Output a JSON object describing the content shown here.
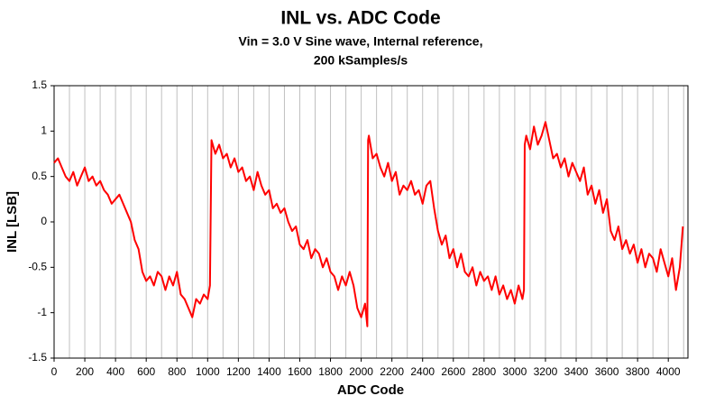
{
  "chart_data": {
    "type": "line",
    "title": "INL vs. ADC Code",
    "subtitle": [
      "Vin = 3.0 V Sine wave, Internal reference,",
      "200 kSamples/s"
    ],
    "xlabel": "ADC Code",
    "ylabel": "INL [LSB]",
    "color": "#ff0000",
    "grid": true,
    "x_grid_step": 100,
    "xlim": [
      0,
      4128
    ],
    "ylim": [
      -1.5,
      1.5
    ],
    "xticks": [
      0,
      200,
      400,
      600,
      800,
      1000,
      1200,
      1400,
      1600,
      1800,
      2000,
      2200,
      2400,
      2600,
      2800,
      3000,
      3200,
      3400,
      3600,
      3800,
      4000
    ],
    "yticks": [
      1.5,
      1,
      0.5,
      0,
      -0.5,
      -1,
      -1.5
    ],
    "x": [
      0,
      25,
      50,
      75,
      100,
      125,
      150,
      175,
      200,
      225,
      250,
      275,
      300,
      325,
      350,
      375,
      400,
      425,
      450,
      475,
      500,
      525,
      550,
      575,
      600,
      625,
      650,
      675,
      700,
      725,
      750,
      775,
      800,
      825,
      850,
      875,
      900,
      925,
      950,
      975,
      1000,
      1015,
      1025,
      1050,
      1075,
      1100,
      1125,
      1150,
      1175,
      1200,
      1225,
      1250,
      1275,
      1300,
      1325,
      1350,
      1375,
      1400,
      1425,
      1450,
      1475,
      1500,
      1525,
      1550,
      1575,
      1600,
      1625,
      1650,
      1675,
      1700,
      1725,
      1750,
      1775,
      1800,
      1825,
      1850,
      1875,
      1900,
      1925,
      1950,
      1975,
      2000,
      2025,
      2040,
      2045,
      2050,
      2075,
      2100,
      2125,
      2150,
      2175,
      2200,
      2225,
      2250,
      2275,
      2300,
      2325,
      2350,
      2375,
      2400,
      2425,
      2450,
      2475,
      2500,
      2525,
      2550,
      2575,
      2600,
      2625,
      2650,
      2675,
      2700,
      2725,
      2750,
      2775,
      2800,
      2825,
      2850,
      2875,
      2900,
      2925,
      2950,
      2975,
      3000,
      3025,
      3050,
      3060,
      3065,
      3075,
      3100,
      3125,
      3150,
      3175,
      3200,
      3225,
      3250,
      3275,
      3300,
      3325,
      3350,
      3375,
      3400,
      3425,
      3450,
      3475,
      3500,
      3525,
      3550,
      3575,
      3600,
      3625,
      3650,
      3675,
      3700,
      3725,
      3750,
      3775,
      3800,
      3825,
      3850,
      3875,
      3900,
      3925,
      3950,
      3975,
      4000,
      4025,
      4050,
      4075,
      4095
    ],
    "values": [
      0.65,
      0.7,
      0.6,
      0.5,
      0.45,
      0.55,
      0.4,
      0.5,
      0.6,
      0.45,
      0.5,
      0.4,
      0.45,
      0.35,
      0.3,
      0.2,
      0.25,
      0.3,
      0.2,
      0.1,
      0.0,
      -0.2,
      -0.3,
      -0.55,
      -0.65,
      -0.6,
      -0.7,
      -0.55,
      -0.6,
      -0.75,
      -0.6,
      -0.7,
      -0.55,
      -0.8,
      -0.85,
      -0.95,
      -1.05,
      -0.85,
      -0.9,
      -0.8,
      -0.85,
      -0.7,
      0.9,
      0.75,
      0.85,
      0.7,
      0.75,
      0.6,
      0.7,
      0.55,
      0.6,
      0.45,
      0.5,
      0.35,
      0.55,
      0.4,
      0.3,
      0.35,
      0.15,
      0.2,
      0.1,
      0.15,
      0.0,
      -0.1,
      -0.05,
      -0.25,
      -0.3,
      -0.2,
      -0.4,
      -0.3,
      -0.35,
      -0.5,
      -0.4,
      -0.55,
      -0.6,
      -0.75,
      -0.6,
      -0.7,
      -0.55,
      -0.7,
      -0.95,
      -1.05,
      -0.9,
      -1.15,
      0.9,
      0.95,
      0.7,
      0.75,
      0.6,
      0.5,
      0.65,
      0.45,
      0.55,
      0.3,
      0.4,
      0.35,
      0.45,
      0.3,
      0.35,
      0.2,
      0.4,
      0.45,
      0.15,
      -0.1,
      -0.25,
      -0.15,
      -0.4,
      -0.3,
      -0.5,
      -0.35,
      -0.55,
      -0.6,
      -0.5,
      -0.7,
      -0.55,
      -0.65,
      -0.6,
      -0.75,
      -0.6,
      -0.8,
      -0.7,
      -0.85,
      -0.75,
      -0.9,
      -0.7,
      -0.85,
      -0.75,
      0.85,
      0.95,
      0.8,
      1.05,
      0.85,
      0.95,
      1.1,
      0.9,
      0.7,
      0.75,
      0.6,
      0.7,
      0.5,
      0.65,
      0.55,
      0.45,
      0.6,
      0.3,
      0.4,
      0.2,
      0.35,
      0.1,
      0.25,
      -0.1,
      -0.2,
      -0.05,
      -0.3,
      -0.2,
      -0.35,
      -0.25,
      -0.45,
      -0.3,
      -0.5,
      -0.35,
      -0.4,
      -0.55,
      -0.3,
      -0.45,
      -0.6,
      -0.4,
      -0.75,
      -0.5,
      -0.05
    ]
  }
}
